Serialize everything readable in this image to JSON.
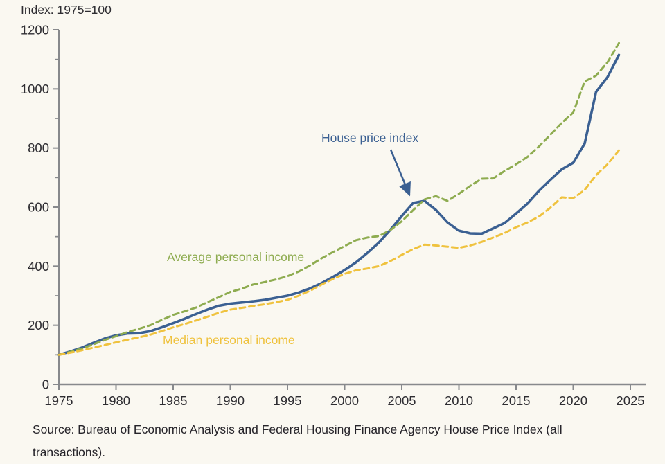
{
  "header": {
    "index_note": "Index: 1975=100"
  },
  "labels": {
    "house_price_index": "House price index",
    "average_personal_income": "Average personal income",
    "median_personal_income": "Median personal income"
  },
  "footer": {
    "source": "Source: Bureau of Economic Analysis and Federal Housing Finance Agency House Price Index (all transactions)."
  },
  "theme": {
    "background": "#FAF8F1",
    "axis_color": "#87898C",
    "text_color": "#2E2D32",
    "hpi_color": "#3B6092",
    "avg_income_color": "#8EAC50",
    "median_income_color": "#EFC23E"
  },
  "chart_data": {
    "type": "line",
    "title": "Index: 1975=100",
    "xlabel": "",
    "ylabel": "Index (1975=100)",
    "grid": false,
    "legend": "inline-labels",
    "x_axis": {
      "range": [
        1975,
        2025
      ],
      "ticks": [
        1975,
        1980,
        1985,
        1990,
        1995,
        2000,
        2005,
        2010,
        2015,
        2020,
        2025
      ]
    },
    "y_axis": {
      "range": [
        0,
        1200
      ],
      "ticks": [
        0,
        200,
        400,
        600,
        800,
        1000,
        1200
      ],
      "minor_ticks": [
        100,
        300,
        500,
        700,
        900,
        1100
      ]
    },
    "x": [
      1975,
      1976,
      1977,
      1978,
      1979,
      1980,
      1981,
      1982,
      1983,
      1984,
      1985,
      1986,
      1987,
      1988,
      1989,
      1990,
      1991,
      1992,
      1993,
      1994,
      1995,
      1996,
      1997,
      1998,
      1999,
      2000,
      2001,
      2002,
      2003,
      2004,
      2005,
      2006,
      2007,
      2008,
      2009,
      2010,
      2011,
      2012,
      2013,
      2014,
      2015,
      2016,
      2017,
      2018,
      2019,
      2020,
      2021,
      2022,
      2023,
      2024
    ],
    "series": [
      {
        "id": "hpi",
        "name": "House price index",
        "color": "#3B6092",
        "style": "solid",
        "values": [
          100,
          111,
          124,
          140,
          155,
          166,
          172,
          173,
          180,
          193,
          207,
          222,
          238,
          253,
          266,
          273,
          277,
          281,
          286,
          293,
          300,
          311,
          325,
          343,
          364,
          387,
          413,
          445,
          480,
          523,
          570,
          614,
          621,
          590,
          548,
          520,
          511,
          510,
          528,
          546,
          578,
          612,
          655,
          692,
          728,
          750,
          815,
          990,
          1040,
          1115
        ]
      },
      {
        "id": "avg-income",
        "name": "Average personal income",
        "color": "#8EAC50",
        "style": "dashed",
        "values": [
          100,
          110,
          121,
          135,
          150,
          163,
          177,
          188,
          200,
          218,
          235,
          247,
          260,
          278,
          295,
          313,
          324,
          338,
          346,
          355,
          366,
          382,
          403,
          427,
          448,
          468,
          488,
          497,
          502,
          522,
          552,
          590,
          626,
          637,
          621,
          645,
          672,
          696,
          697,
          722,
          745,
          770,
          805,
          845,
          885,
          920,
          1025,
          1045,
          1090,
          1155
        ]
      },
      {
        "id": "median-income",
        "name": "Median personal income",
        "color": "#EFC23E",
        "style": "dashed",
        "values": [
          100,
          107,
          115,
          124,
          133,
          142,
          151,
          159,
          168,
          180,
          193,
          204,
          216,
          229,
          242,
          253,
          259,
          265,
          271,
          278,
          286,
          300,
          317,
          338,
          357,
          374,
          386,
          392,
          400,
          417,
          438,
          458,
          473,
          470,
          466,
          462,
          470,
          482,
          497,
          512,
          532,
          548,
          568,
          598,
          633,
          630,
          658,
          708,
          745,
          792
        ]
      }
    ],
    "annotation_arrow": {
      "points_to_series": "hpi",
      "points_to_year": 2006
    }
  }
}
